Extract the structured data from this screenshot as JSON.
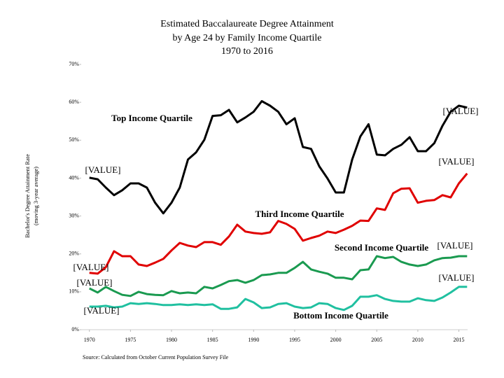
{
  "chart_data": {
    "type": "line",
    "title": [
      "Estimated Baccalaureate Degree Attainment",
      "by Age 24 by Family Income Quartile",
      "1970 to 2016"
    ],
    "y_label": [
      "Bachelor's Degree Attainment Rate",
      "(moving 3-year average)"
    ],
    "source": "Source: Calculated from October Current Population Survey File",
    "x": [
      1970,
      1971,
      1972,
      1973,
      1974,
      1975,
      1976,
      1977,
      1978,
      1979,
      1980,
      1981,
      1982,
      1983,
      1984,
      1985,
      1986,
      1987,
      1988,
      1989,
      1990,
      1991,
      1992,
      1993,
      1994,
      1995,
      1996,
      1997,
      1998,
      1999,
      2000,
      2001,
      2002,
      2003,
      2004,
      2005,
      2006,
      2007,
      2008,
      2009,
      2010,
      2011,
      2012,
      2013,
      2014,
      2015,
      2016
    ],
    "xlim": [
      1969,
      2017
    ],
    "xticks": [
      1970,
      1975,
      1980,
      1985,
      1990,
      1995,
      2000,
      2005,
      2010,
      2015
    ],
    "ylim": [
      0,
      70
    ],
    "yticks": [
      {
        "value": 0,
        "label": "0%"
      },
      {
        "value": 10,
        "label": "10%"
      },
      {
        "value": 20,
        "label": "20%"
      },
      {
        "value": 30,
        "label": "30%"
      },
      {
        "value": 40,
        "label": "40%"
      },
      {
        "value": 50,
        "label": "50%"
      },
      {
        "value": 60,
        "label": "60%"
      },
      {
        "value": 70,
        "label": "70%"
      }
    ],
    "series": [
      {
        "name": "Top Income Quartile",
        "color": "#000000",
        "values": [
          40.1,
          39.7,
          37.5,
          35.5,
          36.8,
          38.6,
          38.6,
          37.5,
          33.5,
          30.7,
          33.5,
          37.5,
          44.9,
          46.8,
          50.1,
          56.4,
          56.6,
          58.0,
          54.7,
          56.0,
          57.5,
          60.3,
          59.1,
          57.5,
          54.2,
          55.8,
          48.2,
          47.7,
          43.1,
          39.9,
          36.2,
          36.2,
          44.9,
          51.0,
          54.2,
          46.2,
          46.0,
          47.7,
          48.8,
          50.8,
          47.1,
          47.1,
          49.2,
          53.8,
          57.5,
          59.1,
          58.6
        ]
      },
      {
        "name": "Third Income Quartile",
        "color": "#e00000",
        "values": [
          15.0,
          14.8,
          16.5,
          20.7,
          19.4,
          19.4,
          17.2,
          16.8,
          17.7,
          18.7,
          20.9,
          22.9,
          22.2,
          21.8,
          23.1,
          23.1,
          22.4,
          24.6,
          27.7,
          25.9,
          25.5,
          25.3,
          25.7,
          28.7,
          27.9,
          26.6,
          23.5,
          24.2,
          24.8,
          25.9,
          25.5,
          26.4,
          27.4,
          28.8,
          28.7,
          32.0,
          31.6,
          36.0,
          37.2,
          37.3,
          33.5,
          34.0,
          34.2,
          35.5,
          34.9,
          38.6,
          41.2
        ]
      },
      {
        "name": "Second Income Quartile",
        "color": "#1a9a50",
        "values": [
          10.9,
          9.8,
          11.3,
          10.2,
          9.2,
          8.9,
          10.0,
          9.4,
          9.2,
          9.1,
          10.2,
          9.6,
          9.8,
          9.6,
          11.3,
          10.9,
          11.8,
          12.8,
          13.1,
          12.4,
          13.1,
          14.4,
          14.6,
          15.0,
          15.0,
          16.3,
          17.9,
          15.9,
          15.3,
          14.8,
          13.7,
          13.7,
          13.3,
          15.7,
          15.9,
          19.4,
          18.9,
          19.2,
          17.9,
          17.2,
          16.8,
          17.2,
          18.3,
          18.9,
          19.0,
          19.4,
          19.4
        ]
      },
      {
        "name": "Bottom Income Quartile",
        "color": "#20c0a0",
        "values": [
          6.1,
          6.1,
          6.3,
          5.9,
          6.1,
          7.0,
          6.8,
          7.0,
          6.8,
          6.5,
          6.5,
          6.7,
          6.5,
          6.7,
          6.5,
          6.7,
          5.5,
          5.5,
          5.9,
          8.1,
          7.2,
          5.7,
          5.9,
          6.8,
          7.0,
          6.1,
          5.7,
          5.9,
          7.0,
          6.8,
          5.7,
          5.2,
          6.3,
          8.7,
          8.7,
          9.1,
          8.1,
          7.6,
          7.4,
          7.4,
          8.3,
          7.8,
          7.6,
          8.5,
          9.8,
          11.3,
          11.3
        ]
      }
    ],
    "annotations": [
      "[VALUE]",
      "[VALUE]",
      "[VALUE]",
      "[VALUE]",
      "[VALUE]",
      "[VALUE]",
      "[VALUE]",
      "[VALUE]"
    ]
  }
}
